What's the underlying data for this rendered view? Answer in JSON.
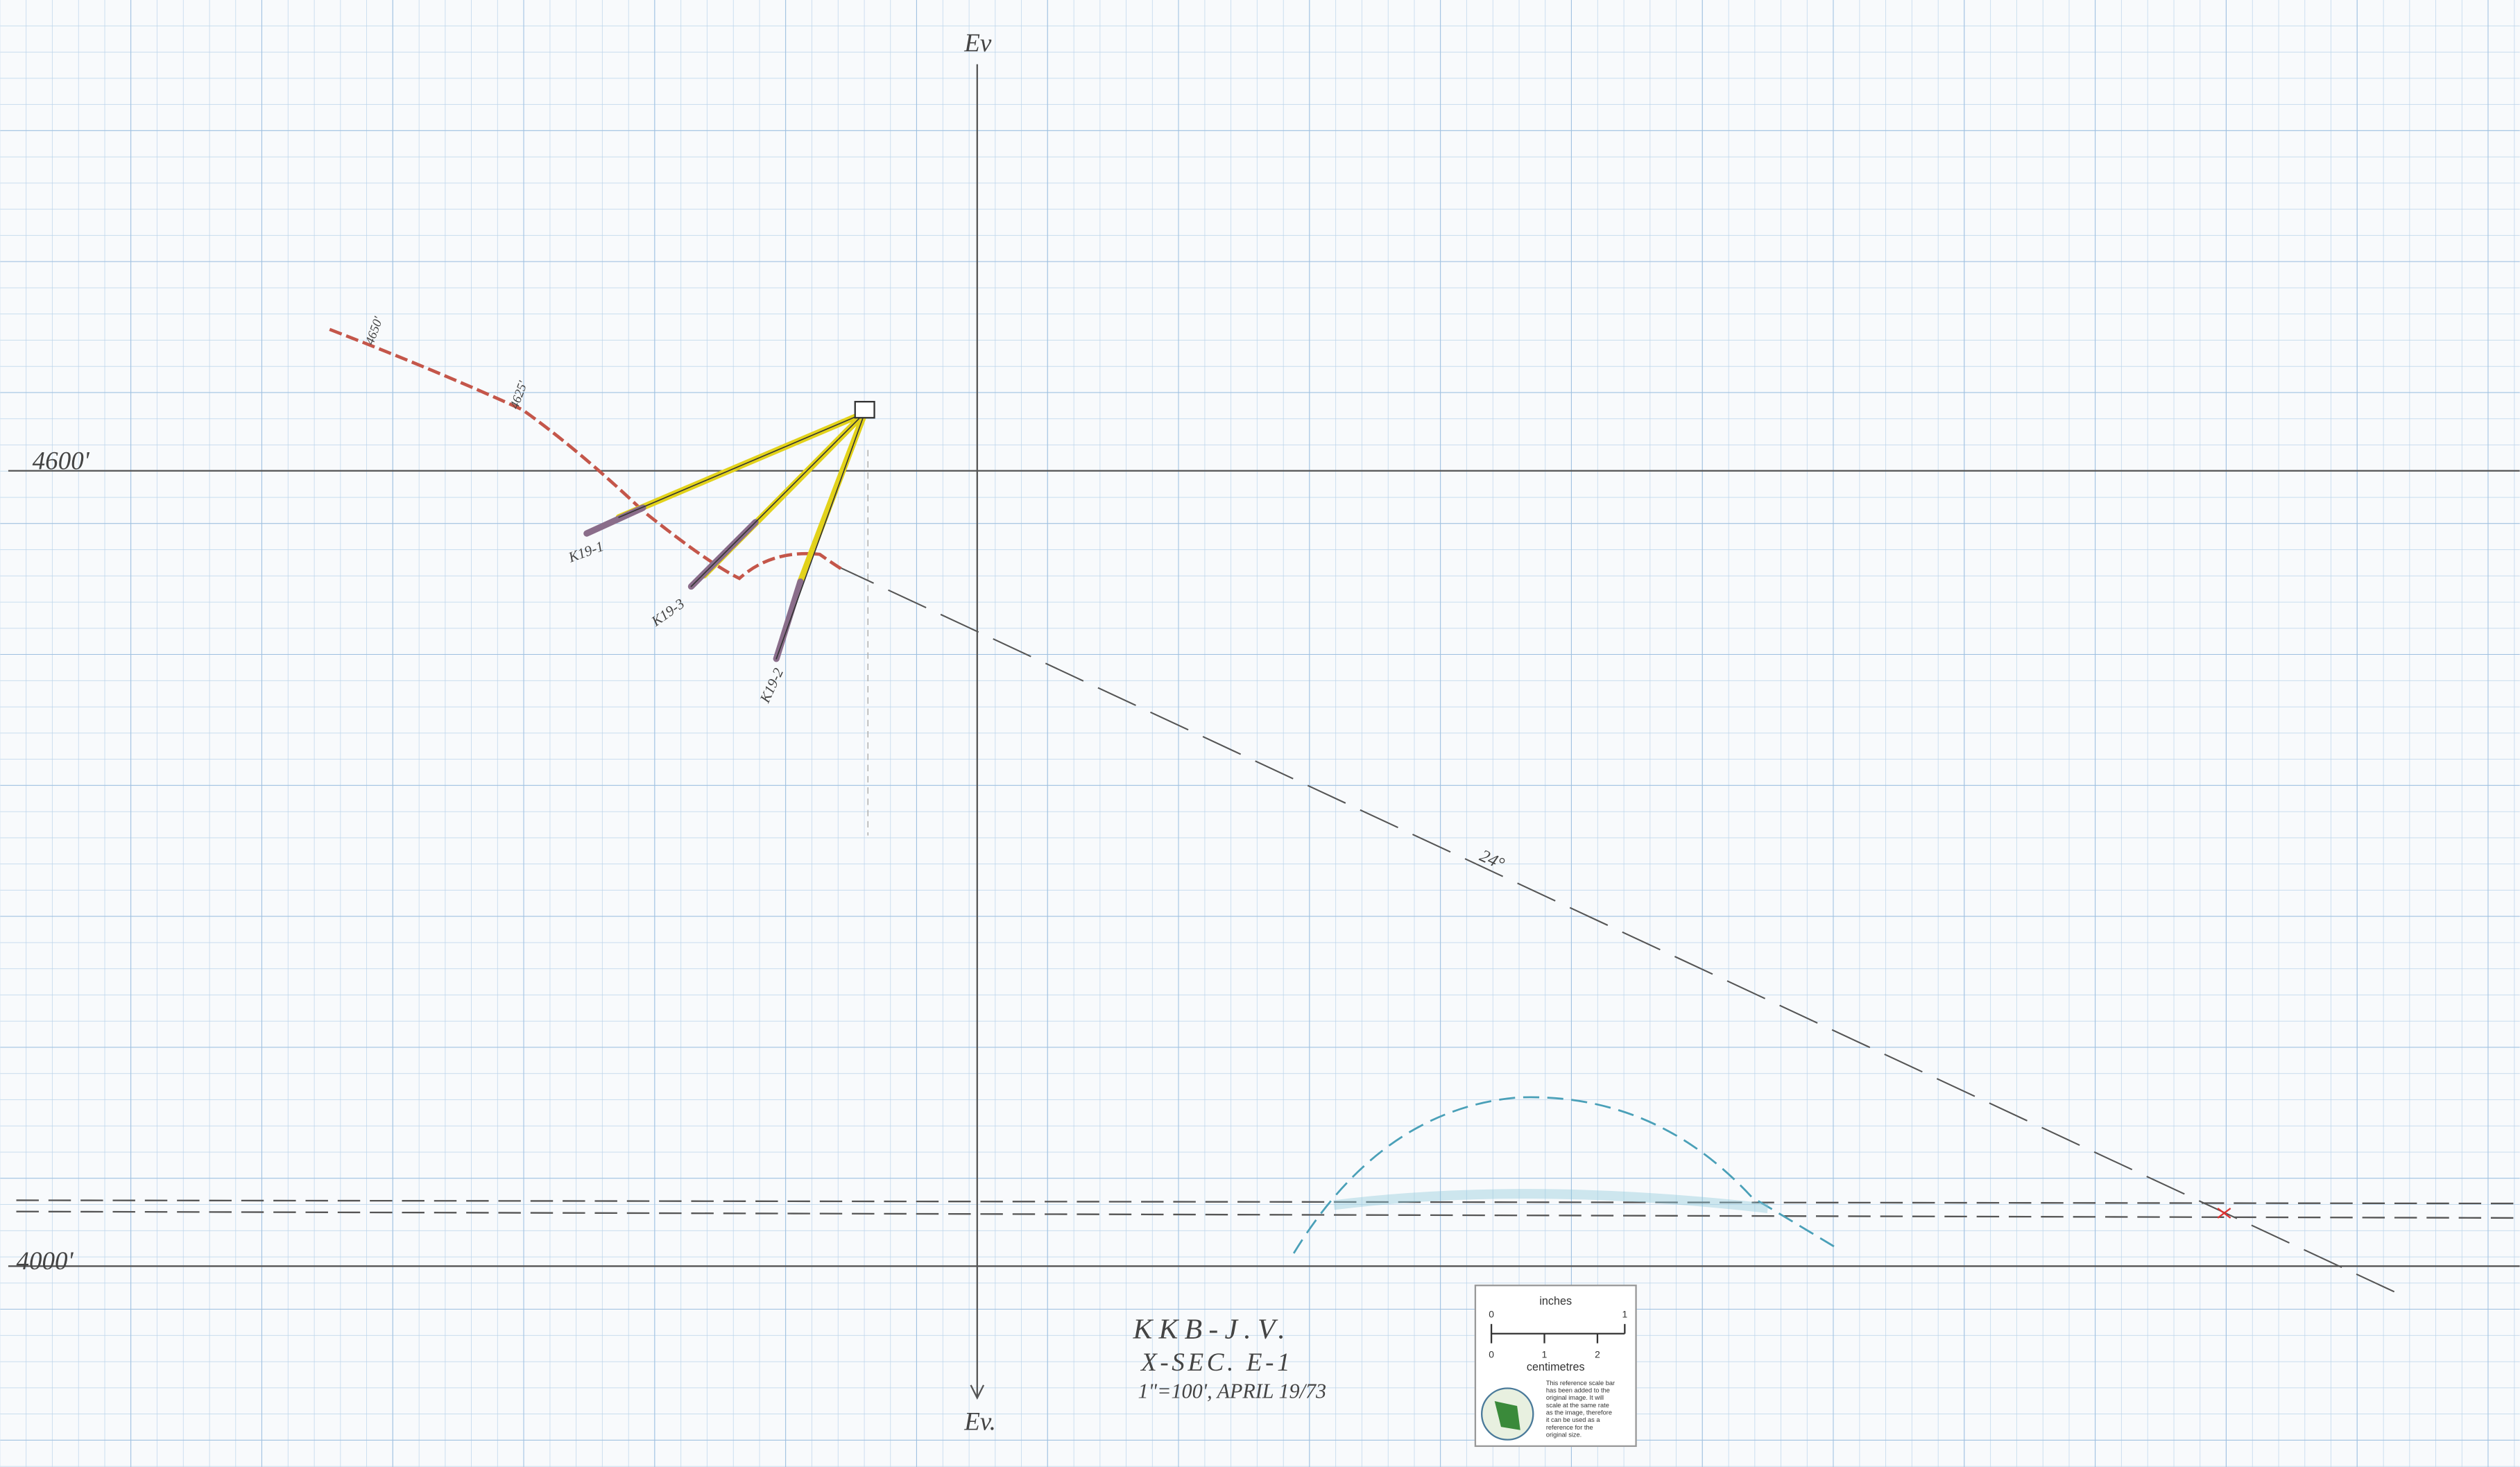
{
  "axis_top": "Ev",
  "axis_bottom": "Ev.",
  "elevations": {
    "upper": "4600'",
    "lower": "4000'"
  },
  "red_line_labels": [
    "4650'",
    "4625'"
  ],
  "holes": [
    "K19-1",
    "K19-3",
    "K19-2"
  ],
  "dip_label": "24°",
  "title_block": {
    "line1": "KKB-J.V.",
    "line2": "X-SEC. E-1",
    "line3": "1\"=100', APRIL 19/73"
  },
  "scale_bar": {
    "inches": "inches",
    "inch_ticks": [
      "0",
      "1"
    ],
    "centimetres": "centimetres",
    "cm_ticks": [
      "0",
      "1",
      "2"
    ],
    "note": [
      "This reference scale bar",
      "has been added to the",
      "original image. It will",
      "scale at the same rate",
      "as the image, therefore",
      "it can be used as a",
      "reference for the",
      "original size."
    ]
  }
}
